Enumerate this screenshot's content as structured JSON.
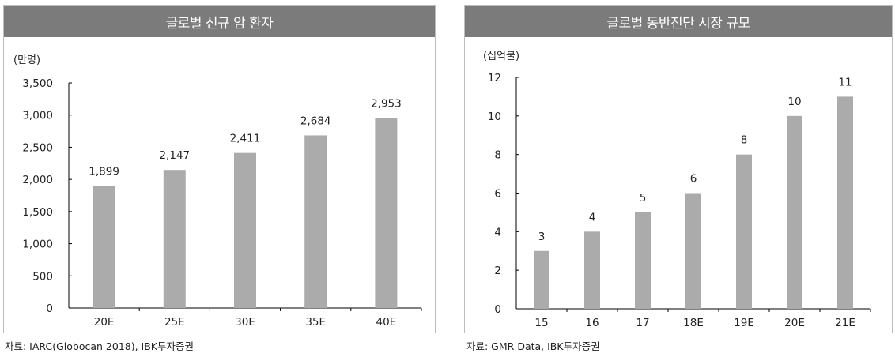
{
  "chart_data": [
    {
      "type": "bar",
      "title": "글로벌 신규 암 환자",
      "unit_label": "(만명)",
      "categories": [
        "20E",
        "25E",
        "30E",
        "35E",
        "40E"
      ],
      "values": [
        1899,
        2147,
        2411,
        2684,
        2953
      ],
      "value_labels": [
        "1,899",
        "2,147",
        "2,411",
        "2,684",
        "2,953"
      ],
      "ylim": [
        0,
        3500
      ],
      "yticks": [
        0,
        500,
        1000,
        1500,
        2000,
        2500,
        3000,
        3500
      ],
      "ytick_labels": [
        "0",
        "500",
        "1,000",
        "1,500",
        "2,000",
        "2,500",
        "3,000",
        "3,500"
      ],
      "bar_color": "#ababab",
      "grid": false,
      "source": "자료: IARC(Globocan 2018), IBK투자증권"
    },
    {
      "type": "bar",
      "title": "글로벌 동반진단 시장 규모",
      "unit_label": "(십억불)",
      "categories": [
        "15",
        "16",
        "17",
        "18E",
        "19E",
        "20E",
        "21E"
      ],
      "values": [
        3,
        4,
        5,
        6,
        8,
        10,
        11
      ],
      "value_labels": [
        "3",
        "4",
        "5",
        "6",
        "8",
        "10",
        "11"
      ],
      "ylim": [
        0,
        12
      ],
      "yticks": [
        0,
        2,
        4,
        6,
        8,
        10,
        12
      ],
      "ytick_labels": [
        "0",
        "2",
        "4",
        "6",
        "8",
        "10",
        "12"
      ],
      "bar_color": "#ababab",
      "grid": false,
      "source": "자료: GMR Data, IBK투자증권"
    }
  ],
  "colors": {
    "header_bg": "#7b7b7b",
    "header_text": "#ffffff",
    "bar": "#ababab",
    "panel_border": "#bdbdbd"
  }
}
